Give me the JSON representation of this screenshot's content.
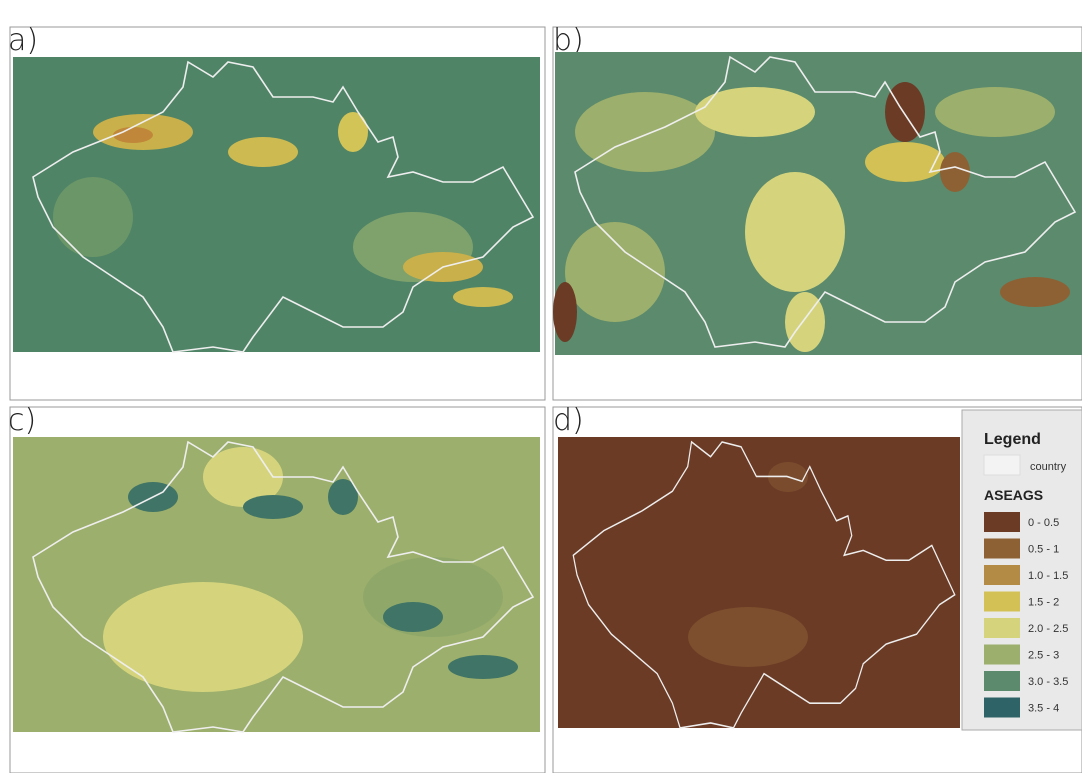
{
  "panels": [
    {
      "label": "a)"
    },
    {
      "label": "b)"
    },
    {
      "label": "c)"
    },
    {
      "label": "d)"
    }
  ],
  "legend": {
    "title": "Legend",
    "country": "country",
    "layer": "ASEAGS",
    "classes": [
      {
        "label": "0 - 0.5",
        "color": "#6b3b25"
      },
      {
        "label": "0.5 - 1",
        "color": "#8d6134"
      },
      {
        "label": "1.0 - 1.5",
        "color": "#b38b45"
      },
      {
        "label": "1.5 - 2",
        "color": "#d4c155"
      },
      {
        "label": "2.0 - 2.5",
        "color": "#d5d47d"
      },
      {
        "label": "2.5 - 3",
        "color": "#9caf6c"
      },
      {
        "label": "3.0 - 3.5",
        "color": "#5b8a6d"
      },
      {
        "label": "3.5 - 4",
        "color": "#2e6467"
      }
    ]
  }
}
